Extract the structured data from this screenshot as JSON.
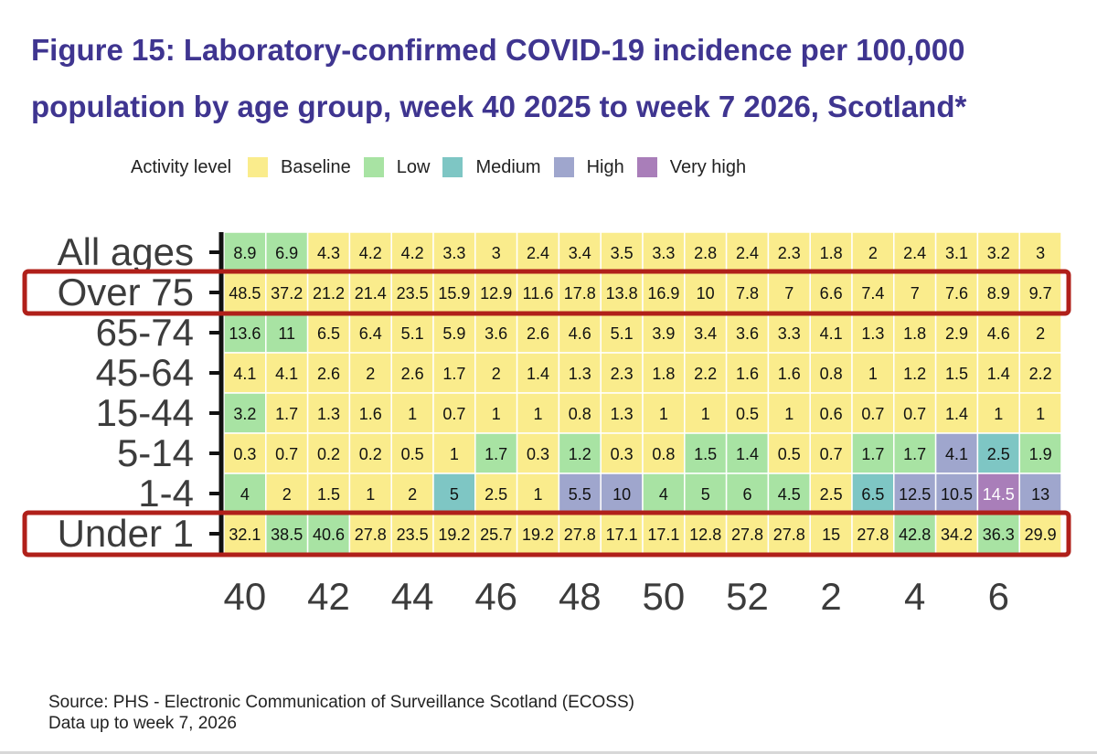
{
  "title_lines": [
    "Figure 15: Laboratory-confirmed COVID-19 incidence per 100,000",
    "population by age group, week 40 2025 to week 7 2026, Scotland*"
  ],
  "legend": {
    "title": "Activity level",
    "items": [
      {
        "label": "Baseline",
        "color": "#faec8c"
      },
      {
        "label": "Low",
        "color": "#a8e3a3"
      },
      {
        "label": "Medium",
        "color": "#7ec6c4"
      },
      {
        "label": "High",
        "color": "#9fa6cd"
      },
      {
        "label": "Very high",
        "color": "#a97eb9"
      }
    ]
  },
  "source_lines": [
    "Source: PHS - Electronic Communication of Surveillance Scotland (ECOSS)",
    "Data up to week 7, 2026"
  ],
  "highlight_color": "#b0201a",
  "highlighted_rows": [
    "Over 75",
    "Under 1"
  ],
  "chart_data": {
    "type": "heatmap",
    "weeks": [
      40,
      41,
      42,
      43,
      44,
      45,
      46,
      47,
      48,
      49,
      50,
      51,
      52,
      1,
      2,
      3,
      4,
      5,
      6,
      7
    ],
    "x_tick_labels": [
      "40",
      "42",
      "44",
      "46",
      "48",
      "50",
      "52",
      "2",
      "4",
      "6"
    ],
    "x_tick_weeks": [
      40,
      42,
      44,
      46,
      48,
      50,
      52,
      2,
      4,
      6
    ],
    "rows": [
      {
        "label": "All ages",
        "values": [
          "8.9",
          "6.9",
          "4.3",
          "4.2",
          "4.2",
          "3.3",
          "3",
          "2.4",
          "3.4",
          "3.5",
          "3.3",
          "2.8",
          "2.4",
          "2.3",
          "1.8",
          "2",
          "2.4",
          "3.1",
          "3.2",
          "3"
        ],
        "levels": [
          "Low",
          "Low",
          "Baseline",
          "Baseline",
          "Baseline",
          "Baseline",
          "Baseline",
          "Baseline",
          "Baseline",
          "Baseline",
          "Baseline",
          "Baseline",
          "Baseline",
          "Baseline",
          "Baseline",
          "Baseline",
          "Baseline",
          "Baseline",
          "Baseline",
          "Baseline"
        ]
      },
      {
        "label": "Over 75",
        "values": [
          "48.5",
          "37.2",
          "21.2",
          "21.4",
          "23.5",
          "15.9",
          "12.9",
          "11.6",
          "17.8",
          "13.8",
          "16.9",
          "10",
          "7.8",
          "7",
          "6.6",
          "7.4",
          "7",
          "7.6",
          "8.9",
          "9.7"
        ],
        "levels": [
          "Baseline",
          "Baseline",
          "Baseline",
          "Baseline",
          "Baseline",
          "Baseline",
          "Baseline",
          "Baseline",
          "Baseline",
          "Baseline",
          "Baseline",
          "Baseline",
          "Baseline",
          "Baseline",
          "Baseline",
          "Baseline",
          "Baseline",
          "Baseline",
          "Baseline",
          "Baseline"
        ]
      },
      {
        "label": "65-74",
        "values": [
          "13.6",
          "11",
          "6.5",
          "6.4",
          "5.1",
          "5.9",
          "3.6",
          "2.6",
          "4.6",
          "5.1",
          "3.9",
          "3.4",
          "3.6",
          "3.3",
          "4.1",
          "1.3",
          "1.8",
          "2.9",
          "4.6",
          "2"
        ],
        "levels": [
          "Low",
          "Low",
          "Baseline",
          "Baseline",
          "Baseline",
          "Baseline",
          "Baseline",
          "Baseline",
          "Baseline",
          "Baseline",
          "Baseline",
          "Baseline",
          "Baseline",
          "Baseline",
          "Baseline",
          "Baseline",
          "Baseline",
          "Baseline",
          "Baseline",
          "Baseline"
        ]
      },
      {
        "label": "45-64",
        "values": [
          "4.1",
          "4.1",
          "2.6",
          "2",
          "2.6",
          "1.7",
          "2",
          "1.4",
          "1.3",
          "2.3",
          "1.8",
          "2.2",
          "1.6",
          "1.6",
          "0.8",
          "1",
          "1.2",
          "1.5",
          "1.4",
          "2.2"
        ],
        "levels": [
          "Baseline",
          "Baseline",
          "Baseline",
          "Baseline",
          "Baseline",
          "Baseline",
          "Baseline",
          "Baseline",
          "Baseline",
          "Baseline",
          "Baseline",
          "Baseline",
          "Baseline",
          "Baseline",
          "Baseline",
          "Baseline",
          "Baseline",
          "Baseline",
          "Baseline",
          "Baseline"
        ]
      },
      {
        "label": "15-44",
        "values": [
          "3.2",
          "1.7",
          "1.3",
          "1.6",
          "1",
          "0.7",
          "1",
          "1",
          "0.8",
          "1.3",
          "1",
          "1",
          "0.5",
          "1",
          "0.6",
          "0.7",
          "0.7",
          "1.4",
          "1",
          "1"
        ],
        "levels": [
          "Low",
          "Baseline",
          "Baseline",
          "Baseline",
          "Baseline",
          "Baseline",
          "Baseline",
          "Baseline",
          "Baseline",
          "Baseline",
          "Baseline",
          "Baseline",
          "Baseline",
          "Baseline",
          "Baseline",
          "Baseline",
          "Baseline",
          "Baseline",
          "Baseline",
          "Baseline"
        ]
      },
      {
        "label": "5-14",
        "values": [
          "0.3",
          "0.7",
          "0.2",
          "0.2",
          "0.5",
          "1",
          "1.7",
          "0.3",
          "1.2",
          "0.3",
          "0.8",
          "1.5",
          "1.4",
          "0.5",
          "0.7",
          "1.7",
          "1.7",
          "4.1",
          "2.5",
          "1.9"
        ],
        "levels": [
          "Baseline",
          "Baseline",
          "Baseline",
          "Baseline",
          "Baseline",
          "Baseline",
          "Low",
          "Baseline",
          "Low",
          "Baseline",
          "Baseline",
          "Low",
          "Low",
          "Baseline",
          "Baseline",
          "Low",
          "Low",
          "High",
          "Medium",
          "Low"
        ]
      },
      {
        "label": "1-4",
        "values": [
          "4",
          "2",
          "1.5",
          "1",
          "2",
          "5",
          "2.5",
          "1",
          "5.5",
          "10",
          "4",
          "5",
          "6",
          "4.5",
          "2.5",
          "6.5",
          "12.5",
          "10.5",
          "14.5",
          "13"
        ],
        "levels": [
          "Low",
          "Baseline",
          "Baseline",
          "Baseline",
          "Baseline",
          "Medium",
          "Baseline",
          "Baseline",
          "High",
          "High",
          "Low",
          "Low",
          "Low",
          "Low",
          "Baseline",
          "Medium",
          "High",
          "High",
          "Very high",
          "High"
        ]
      },
      {
        "label": "Under 1",
        "values": [
          "32.1",
          "38.5",
          "40.6",
          "27.8",
          "23.5",
          "19.2",
          "25.7",
          "19.2",
          "27.8",
          "17.1",
          "17.1",
          "12.8",
          "27.8",
          "27.8",
          "15",
          "27.8",
          "42.8",
          "34.2",
          "36.3",
          "29.9"
        ],
        "levels": [
          "Baseline",
          "Low",
          "Low",
          "Baseline",
          "Baseline",
          "Baseline",
          "Baseline",
          "Baseline",
          "Baseline",
          "Baseline",
          "Baseline",
          "Baseline",
          "Baseline",
          "Baseline",
          "Baseline",
          "Baseline",
          "Low",
          "Baseline",
          "Low",
          "Baseline"
        ]
      }
    ]
  }
}
